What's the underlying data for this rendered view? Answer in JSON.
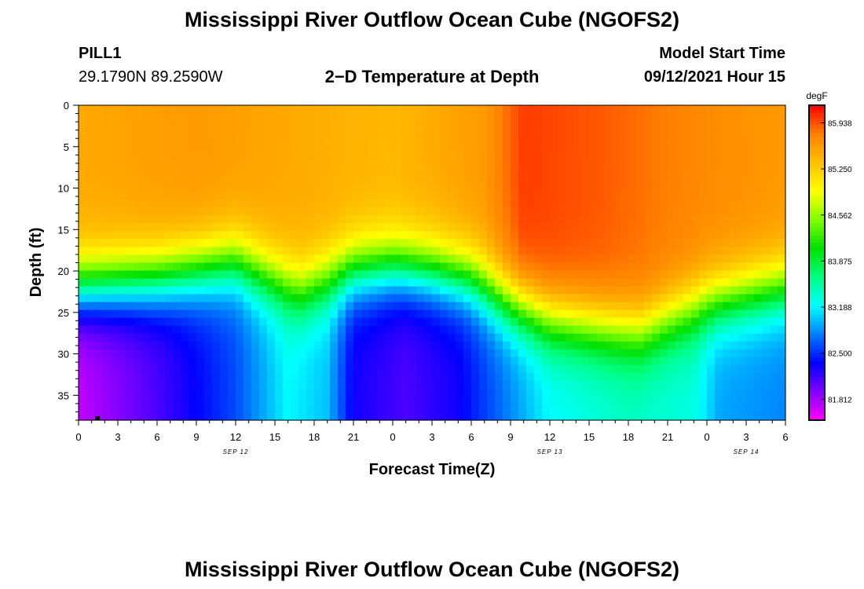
{
  "page": {
    "title_top": "Mississippi River Outflow Ocean Cube (NGOFS2)",
    "title_bottom": "Mississippi River Outflow Ocean Cube (NGOFS2)",
    "station_name": "PILL1",
    "station_coords": "29.1790N  89.2590W",
    "plot_title": "2−D Temperature at Depth",
    "model_start_label": "Model Start Time",
    "model_start_value": "09/12/2021 Hour 15"
  },
  "chart_data": {
    "type": "heatmap",
    "title": "2−D Temperature at Depth",
    "xlabel": "Forecast Time(Z)",
    "ylabel": "Depth (ft)",
    "x_hours_range": [
      0,
      54
    ],
    "x_tick_labels": [
      "0",
      "3",
      "6",
      "9",
      "12",
      "15",
      "18",
      "21",
      "0",
      "3",
      "6",
      "9",
      "12",
      "15",
      "18",
      "21",
      "0",
      "3",
      "6"
    ],
    "x_date_labels": [
      {
        "label": "SEP 12",
        "hour": 12
      },
      {
        "label": "SEP 13",
        "hour": 36
      },
      {
        "label": "SEP 14",
        "hour": 51
      }
    ],
    "y_range": [
      0,
      38
    ],
    "y_ticks": [
      0,
      5,
      10,
      15,
      20,
      25,
      30,
      35
    ],
    "colorbar": {
      "unit": "degF",
      "range": [
        81.5,
        86.2
      ],
      "tick_labels": [
        "85.938",
        "85.250",
        "84.562",
        "83.875",
        "83.188",
        "82.500",
        "81.812"
      ],
      "tick_values": [
        85.938,
        85.25,
        84.562,
        83.875,
        83.188,
        82.5,
        81.812
      ],
      "colors": [
        "#ff00ff",
        "#8000ff",
        "#0000ff",
        "#0080ff",
        "#00ffff",
        "#00ff80",
        "#00e000",
        "#80ff00",
        "#ffff00",
        "#ffc000",
        "#ff8000",
        "#ff0000"
      ]
    },
    "surface_temps": [
      {
        "hour": 0,
        "value": 85.5
      },
      {
        "hour": 9,
        "value": 85.6
      },
      {
        "hour": 16,
        "value": 85.5
      },
      {
        "hour": 24,
        "value": 85.4
      },
      {
        "hour": 31,
        "value": 85.6
      },
      {
        "hour": 34,
        "value": 86.0
      },
      {
        "hour": 40,
        "value": 85.9
      },
      {
        "hour": 48,
        "value": 85.7
      },
      {
        "hour": 54,
        "value": 85.6
      }
    ],
    "thermocline": [
      {
        "hour": 0,
        "depth_ft": 22
      },
      {
        "hour": 6,
        "depth_ft": 21
      },
      {
        "hour": 12,
        "depth_ft": 19
      },
      {
        "hour": 17,
        "depth_ft": 22.5
      },
      {
        "hour": 21,
        "depth_ft": 20
      },
      {
        "hour": 24,
        "depth_ft": 19.5
      },
      {
        "hour": 27,
        "depth_ft": 20
      },
      {
        "hour": 30,
        "depth_ft": 21
      },
      {
        "hour": 33,
        "depth_ft": 24
      },
      {
        "hour": 36,
        "depth_ft": 26
      },
      {
        "hour": 40,
        "depth_ft": 27
      },
      {
        "hour": 43,
        "depth_ft": 27.5
      },
      {
        "hour": 45,
        "depth_ft": 26
      },
      {
        "hour": 48,
        "depth_ft": 24
      },
      {
        "hour": 51,
        "depth_ft": 23
      },
      {
        "hour": 54,
        "depth_ft": 22
      }
    ],
    "bottom_temps": [
      {
        "hour": 0,
        "value": 81.7
      },
      {
        "hour": 6,
        "value": 82.1
      },
      {
        "hour": 12,
        "value": 82.6
      },
      {
        "hour": 16,
        "value": 83.2
      },
      {
        "hour": 19,
        "value": 83.0
      },
      {
        "hour": 21,
        "value": 82.3
      },
      {
        "hour": 25,
        "value": 82.1
      },
      {
        "hour": 29,
        "value": 82.3
      },
      {
        "hour": 33,
        "value": 82.8
      },
      {
        "hour": 36,
        "value": 83.2
      },
      {
        "hour": 42,
        "value": 83.4
      },
      {
        "hour": 47,
        "value": 83.3
      },
      {
        "hour": 49,
        "value": 82.9
      },
      {
        "hour": 54,
        "value": 82.8
      }
    ]
  }
}
